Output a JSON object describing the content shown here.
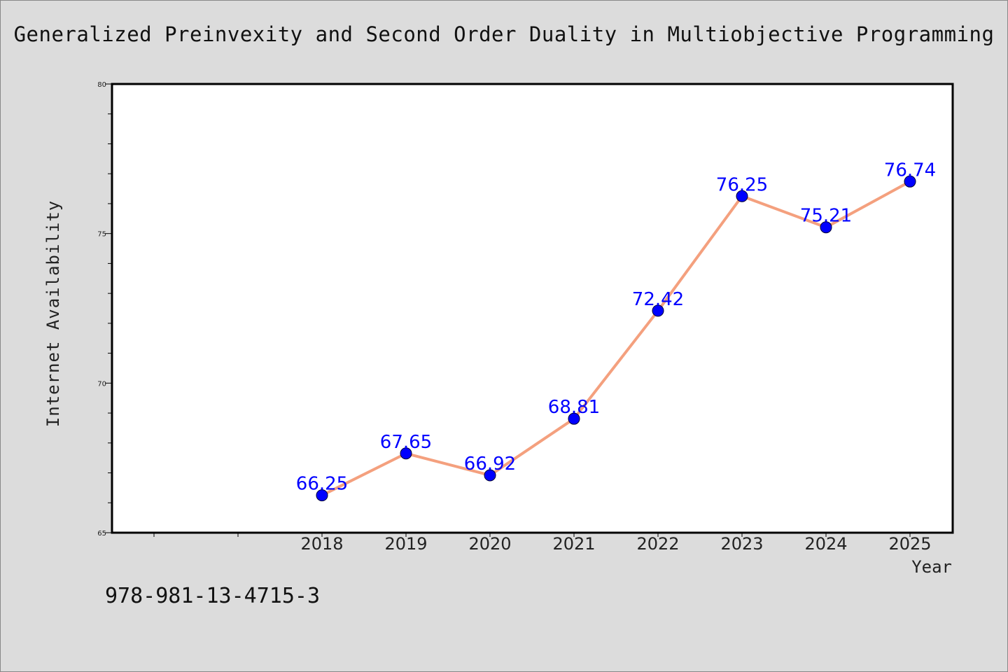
{
  "title": "Generalized Preinvexity and Second Order Duality in Multiobjective Programming",
  "footer": "978-981-13-4715-3",
  "colors": {
    "background": "#dcdcdc",
    "plot_background": "#ffffff",
    "line": "#f4a07e",
    "marker": "#0000ff",
    "data_label": "#0000ff"
  },
  "chart_data": {
    "type": "line",
    "xlabel": "Year",
    "ylabel": "Internet Availability",
    "x": [
      "2018",
      "2019",
      "2020",
      "2021",
      "2022",
      "2023",
      "2024",
      "2025"
    ],
    "series": [
      {
        "values": [
          66.25,
          67.65,
          66.92,
          68.81,
          72.42,
          76.25,
          75.21,
          76.74
        ]
      }
    ],
    "data_labels": [
      "66.25",
      "67.65",
      "66.92",
      "68.81",
      "72.42",
      "76.25",
      "75.21",
      "76.74"
    ],
    "ylim": [
      65,
      80
    ],
    "yticks": [
      "65",
      "70",
      "75",
      "80"
    ],
    "grid": false,
    "legend": "none"
  }
}
